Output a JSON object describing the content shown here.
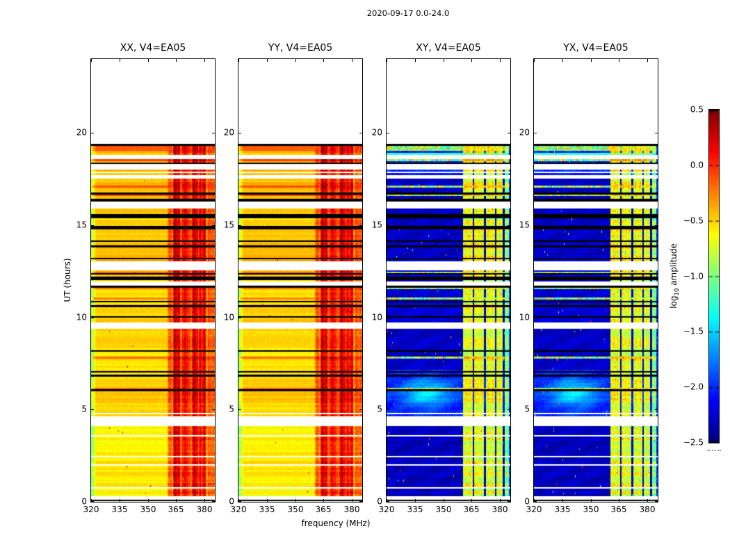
{
  "chart_data": {
    "type": "heatmap",
    "title": "2020-09-17 0.0-24.0",
    "xlabel": "frequency (MHz)",
    "ylabel": "UT (hours)",
    "x_range_mhz": [
      320,
      385.4
    ],
    "y_range_hours": [
      0,
      24
    ],
    "xtick_labels": [
      "320",
      "335",
      "350",
      "365",
      "380"
    ],
    "xtick_values": [
      320,
      335,
      350,
      365,
      380
    ],
    "ytick_labels": [
      "0",
      "5",
      "10",
      "15",
      "20"
    ],
    "ytick_values": [
      0,
      5,
      10,
      15,
      20
    ],
    "panels": [
      {
        "title": "XX, V4=EA05",
        "kind": "parallel",
        "seed": 11
      },
      {
        "title": "YY, V4=EA05",
        "kind": "parallel",
        "seed": 23
      },
      {
        "title": "XY, V4=EA05",
        "kind": "cross",
        "seed": 37
      },
      {
        "title": "YX, V4=EA05",
        "kind": "cross",
        "seed": 51
      }
    ],
    "colorbar": {
      "label_prefix": "log",
      "label_sub": "10",
      "label_suffix": " amplitude",
      "tick_labels": [
        "0.5",
        "0.0",
        "−0.5",
        "−1.0",
        "−1.5",
        "−2.0",
        "−2.5"
      ],
      "tick_values": [
        0.5,
        0.0,
        -0.5,
        -1.0,
        -1.5,
        -2.0,
        -2.5
      ],
      "vmin": -2.5,
      "vmax": 0.5,
      "colormap": "jet"
    },
    "observation": {
      "structure_seed": 7,
      "data_top_hours": 19.38,
      "white_gaps_hours": [
        [
          0.12,
          0.22
        ],
        [
          4.18,
          4.55
        ],
        [
          9.45,
          9.65
        ],
        [
          11.76,
          11.94
        ],
        [
          12.55,
          12.95
        ],
        [
          15.95,
          16.22
        ],
        [
          17.52,
          17.66
        ],
        [
          18.05,
          18.2
        ],
        [
          18.62,
          18.78
        ]
      ],
      "flag_segments": [
        [
          0,
          2.6,
          0.05,
          0.1,
          0.02
        ],
        [
          2.6,
          4.18,
          0.06,
          0.04,
          0.02
        ],
        [
          4.55,
          7.2,
          0.05,
          0.06,
          0.03
        ],
        [
          7.2,
          9.45,
          0.08,
          0.05,
          0.03
        ],
        [
          9.65,
          11.76,
          0.18,
          0.05,
          0.04
        ],
        [
          11.94,
          12.55,
          0.14,
          0.05,
          0.05
        ],
        [
          12.95,
          15.95,
          0.3,
          0.05,
          0.1
        ],
        [
          16.22,
          17.52,
          0.26,
          0.06,
          0.1
        ],
        [
          17.66,
          19.38,
          0.25,
          0.12,
          0.12
        ]
      ],
      "forced_hot_top_hours": [
        19.05,
        19.38
      ],
      "rfi_band_mhz": [
        360.3,
        385.4
      ],
      "parallel": {
        "base_by_segment": [
          [
            0,
            4.55,
            -0.58
          ],
          [
            4.55,
            9.45,
            -0.52
          ],
          [
            9.45,
            12.95,
            -0.5
          ],
          [
            12.95,
            17.66,
            -0.47
          ],
          [
            17.66,
            24,
            -0.42
          ]
        ],
        "band_base": -0.17,
        "band_clumps_mhz": [
          [
            363.2,
            366.9,
            0.4
          ],
          [
            368.1,
            371.3,
            0.3
          ],
          [
            373.1,
            376.3,
            0.36
          ],
          [
            377.3,
            380.5,
            0.3
          ]
        ],
        "left_edge_green_mhz": 322.5
      },
      "cross": {
        "base_by_segment": [
          [
            0,
            4.55,
            -2.32
          ],
          [
            4.55,
            7.2,
            -2.06
          ],
          [
            7.2,
            9.65,
            -2.3
          ],
          [
            9.65,
            12.95,
            -2.26
          ],
          [
            12.95,
            17.66,
            -2.32
          ],
          [
            17.66,
            24,
            -2.05
          ]
        ],
        "band_stripe_base": -0.72,
        "band_stripes_mhz": [
          [
            360.3,
            365.2
          ],
          [
            366.2,
            371.2
          ],
          [
            372.2,
            377.0
          ],
          [
            378.0,
            381.2
          ],
          [
            382.2,
            384.4
          ]
        ],
        "cyan_rows_hours": [
          17.9,
          18.6
        ],
        "forced_cyan_hours": [
          18.82,
          18.94
        ],
        "blob": {
          "ut": 5.9,
          "mhz": 341,
          "sigma_ut": 0.55,
          "sigma_mhz": 9,
          "amp": 0.62
        }
      }
    }
  }
}
